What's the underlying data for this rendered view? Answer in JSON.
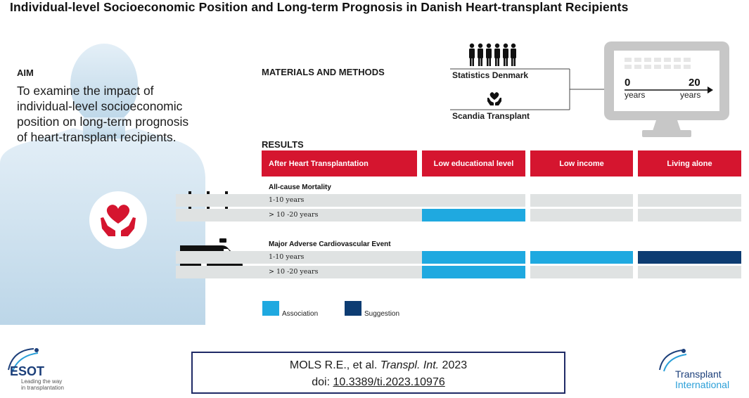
{
  "title": "Individual-level Socioeconomic Position and Long-term Prognosis in Danish Heart-transplant Recipients",
  "aim": {
    "heading": "AIM",
    "text": "To examine the impact of individual-level socioeconomic position on long-term prognosis of heart-transplant recipients."
  },
  "methods": {
    "heading": "MATERIALS AND METHODS",
    "source1": "Statistics Denmark",
    "source2": "Scandia Transplant",
    "axis_start": "0",
    "axis_start_unit": "years",
    "axis_end": "20",
    "axis_end_unit": "years"
  },
  "results": {
    "heading": "RESULTS",
    "columns": [
      "After Heart Transplantation",
      "Low educational level",
      "Low income",
      "Living alone"
    ],
    "sections": [
      {
        "label": "All-cause Mortality",
        "rows": [
          {
            "label": "1-10 years",
            "cells": [
              "none",
              "none",
              "none"
            ]
          },
          {
            "label": "> 10 -20 years",
            "cells": [
              "association",
              "none",
              "none"
            ]
          }
        ]
      },
      {
        "label": "Major Adverse Cardiovascular Event",
        "rows": [
          {
            "label": "1-10 years",
            "cells": [
              "association",
              "association",
              "suggestion"
            ]
          },
          {
            "label": "> 10 -20 years",
            "cells": [
              "association",
              "none",
              "none"
            ]
          }
        ]
      }
    ],
    "legend": [
      {
        "label": "Association",
        "color": "#1fa9e0"
      },
      {
        "label": "Suggestion",
        "color": "#0d3c72"
      }
    ]
  },
  "citation": {
    "line1_prefix": "MOLS R.E., et al. ",
    "journal": "Transpl. Int.",
    "year": " 2023",
    "doi_prefix": "doi: ",
    "doi": "10.3389/ti.2023.10976"
  },
  "logos": {
    "left_name": "ESOT",
    "left_tagline1": "Leading the way",
    "left_tagline2": "in transplantation",
    "right_line1": "Transplant",
    "right_line2": "International"
  },
  "colors": {
    "header_red": "#d5152f",
    "association": "#1fa9e0",
    "suggestion": "#0d3c72",
    "row_grey": "#dfe2e2",
    "silhouette": "#cfe2ef"
  },
  "icons": [
    "person-silhouette-icon",
    "heart-hands-icon",
    "crosses-icon",
    "ambulance-icon",
    "people-group-icon",
    "monitor-icon"
  ]
}
